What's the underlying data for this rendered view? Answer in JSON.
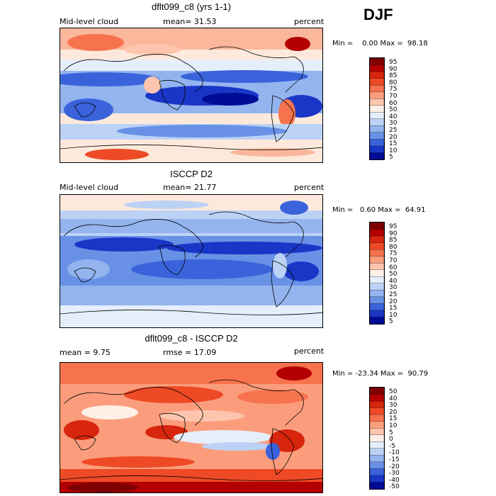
{
  "season": "DJF",
  "panels": [
    {
      "title": "dflt099_c8 (yrs 1-1)",
      "left_label": "Mid-level cloud",
      "mean_label": "mean=  31.53",
      "right_label": "percent",
      "minmax": "Min =    0.00 Max =  98.18",
      "ticks": [
        "95",
        "90",
        "85",
        "80",
        "75",
        "70",
        "60",
        "50",
        "40",
        "30",
        "25",
        "20",
        "15",
        "10",
        "5"
      ]
    },
    {
      "title": "ISCCP D2",
      "left_label": "Mid-level cloud",
      "mean_label": "mean=  21.77",
      "right_label": "percent",
      "minmax": "Min =   0.60 Max =  64.91",
      "ticks": [
        "95",
        "90",
        "85",
        "80",
        "75",
        "70",
        "60",
        "50",
        "40",
        "30",
        "25",
        "20",
        "15",
        "10",
        "5"
      ]
    },
    {
      "title": "dflt099_c8 - ISCCP D2",
      "left_label": "mean =    9.75",
      "mean_label": "rmse =   17.09",
      "right_label": "percent",
      "minmax": "Min = -23.34 Max =  90.79",
      "ticks": [
        "50",
        "40",
        "30",
        "20",
        "15",
        "10",
        "5",
        "0",
        "-5",
        "-10",
        "-15",
        "-20",
        "-30",
        "-40",
        "-50"
      ]
    }
  ],
  "colors": {
    "scale": [
      "#7f0000",
      "#b40000",
      "#d8260e",
      "#ee4a26",
      "#f7734d",
      "#fb9d7c",
      "#fdc5ad",
      "#fdf0e6",
      "#e5eefb",
      "#bcd2f5",
      "#93b4ee",
      "#6891e6",
      "#3a63db",
      "#1a36c7",
      "#000c96"
    ]
  }
}
